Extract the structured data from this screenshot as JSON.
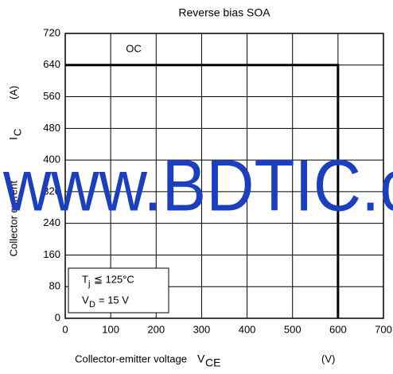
{
  "chart_data": {
    "type": "line",
    "title": "Reverse bias SOA",
    "x_label": {
      "text": "Collector-emitter voltage",
      "symbol": "V",
      "subscript": "CE",
      "unit": "(V)"
    },
    "y_label": {
      "text": "Collector current",
      "symbol": "I",
      "subscript": "C",
      "unit": "(A)"
    },
    "x": [
      0,
      600,
      600
    ],
    "series": [
      {
        "color": "#000000",
        "values": [
          640,
          640,
          0
        ]
      }
    ],
    "xlim": [
      0,
      700
    ],
    "xticks": [
      0,
      100,
      200,
      300,
      400,
      500,
      600,
      700
    ],
    "ylim": [
      0,
      720
    ],
    "yticks": [
      0,
      80,
      160,
      240,
      320,
      400,
      480,
      560,
      640,
      720
    ],
    "grid": true,
    "annotations": {
      "region": "OC",
      "temp": {
        "symbol": "T",
        "subscript": "j",
        "text": "≦ 125°C"
      },
      "voltage": {
        "symbol": "V",
        "subscript": "D",
        "text": "= 15 V"
      }
    },
    "watermark": "www.BDTIC.c"
  }
}
